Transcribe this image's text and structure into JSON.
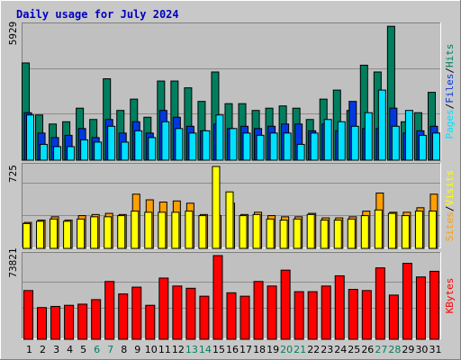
{
  "title": "Daily usage for July 2024",
  "colors": {
    "hits": "#007F5F",
    "files": "#0038E0",
    "pages": "#00E0FF",
    "visits": "#FFFF00",
    "sites": "#FF9F00",
    "kbytes": "#FF0000",
    "plot_bg": "#C0C0C0",
    "frame_bg": "#C8C8C8",
    "title": "#0000C0",
    "weekend": "#007F5F"
  },
  "chart_data": [
    {
      "type": "bar",
      "panel": "hits_files_pages",
      "tick_label": "5929",
      "ymax": 5929,
      "legend": [
        "Pages",
        "Files",
        "Hits"
      ],
      "categories": [
        "1",
        "2",
        "3",
        "4",
        "5",
        "6",
        "7",
        "8",
        "9",
        "10",
        "11",
        "12",
        "13",
        "14",
        "15",
        "16",
        "17",
        "18",
        "19",
        "20",
        "21",
        "22",
        "23",
        "24",
        "25",
        "26",
        "27",
        "28",
        "29",
        "30",
        "31"
      ],
      "weekend_days": [
        "6",
        "7",
        "13",
        "14",
        "20",
        "21",
        "27",
        "28"
      ],
      "series": [
        {
          "name": "Hits",
          "values": [
            4300,
            2000,
            1600,
            1700,
            2300,
            1800,
            3600,
            2200,
            2700,
            1900,
            3500,
            3500,
            3200,
            2600,
            3900,
            2500,
            2500,
            2200,
            2300,
            2400,
            2300,
            1800,
            2700,
            3100,
            2200,
            4200,
            3900,
            5920,
            1700,
            2100,
            3000
          ]
        },
        {
          "name": "Files",
          "values": [
            2100,
            1200,
            1000,
            1100,
            1400,
            1000,
            1800,
            1200,
            1700,
            1200,
            2200,
            1900,
            1500,
            1300,
            1600,
            1400,
            1500,
            1400,
            1500,
            1600,
            1600,
            1300,
            1600,
            1300,
            2600,
            1400,
            1400,
            2300,
            1200,
            1300,
            1500
          ]
        },
        {
          "name": "Pages",
          "values": [
            2000,
            700,
            600,
            600,
            900,
            800,
            1500,
            800,
            1300,
            1000,
            1700,
            1400,
            1200,
            1300,
            2000,
            1400,
            1200,
            1100,
            1200,
            1200,
            700,
            1200,
            1800,
            1700,
            1500,
            2100,
            3100,
            1500,
            2200,
            1100,
            1200
          ]
        }
      ]
    },
    {
      "type": "bar",
      "panel": "sites_visits",
      "tick_label": "725",
      "ymax": 725,
      "legend": [
        "Sites",
        "Visits"
      ],
      "series": [
        {
          "name": "Visits",
          "values": [
            220,
            240,
            260,
            240,
            260,
            280,
            280,
            290,
            330,
            320,
            320,
            320,
            330,
            290,
            725,
            500,
            290,
            300,
            260,
            250,
            260,
            300,
            250,
            250,
            260,
            290,
            340,
            310,
            290,
            330,
            330
          ]
        },
        {
          "name": "Sites",
          "values": [
            230,
            250,
            280,
            250,
            290,
            300,
            310,
            300,
            480,
            430,
            410,
            420,
            400,
            300,
            290,
            400,
            300,
            320,
            290,
            280,
            280,
            310,
            270,
            270,
            280,
            330,
            490,
            320,
            320,
            360,
            480
          ]
        }
      ]
    },
    {
      "type": "bar",
      "panel": "kbytes",
      "tick_label": "73821",
      "ymax": 73821,
      "legend": [
        "KBytes"
      ],
      "series": [
        {
          "name": "KBytes",
          "values": [
            43000,
            28000,
            29000,
            30000,
            31000,
            35000,
            51000,
            40000,
            46000,
            30000,
            54000,
            47000,
            45000,
            38000,
            73821,
            41000,
            38000,
            51000,
            47000,
            61000,
            42000,
            42000,
            47000,
            56000,
            44000,
            43000,
            63000,
            39000,
            67000,
            55000,
            60000
          ]
        }
      ]
    }
  ]
}
